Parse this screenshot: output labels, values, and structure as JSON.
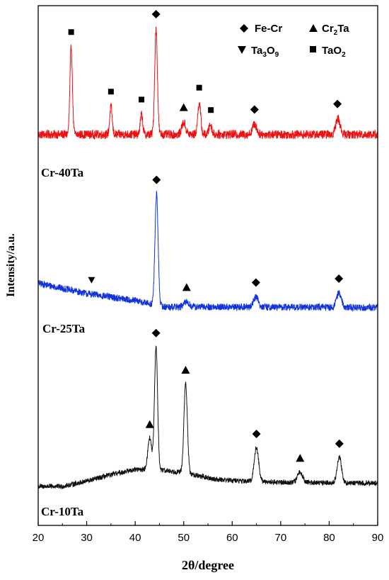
{
  "chart_data": {
    "type": "line",
    "xlabel": "2θ/degree",
    "ylabel": "Intensity/a.u.",
    "xlim": [
      20,
      90
    ],
    "xticks": [
      "20",
      "30",
      "40",
      "50",
      "60",
      "70",
      "80",
      "90"
    ],
    "legend": {
      "placement": "top-right",
      "entries": [
        {
          "symbol": "diamond",
          "text": "Fe-Cr",
          "label_main": "Fe-Cr",
          "label_sub": "",
          "label_tail": ""
        },
        {
          "symbol": "triangle-up",
          "text": "Cr2Ta",
          "label_main": "Cr",
          "label_sub": "2",
          "label_tail": "Ta"
        },
        {
          "symbol": "triangle-down",
          "text": "Ta3O9",
          "label_main": "Ta",
          "label_sub": "3",
          "label_tail": "O",
          "label_sub2": "9"
        },
        {
          "symbol": "square",
          "text": "TaO2",
          "label_main": "TaO",
          "label_sub": "2",
          "label_tail": ""
        }
      ]
    },
    "series": [
      {
        "name": "Cr-40Ta",
        "color": "#ee1111",
        "baseline": 0.3,
        "noise": 0.22,
        "background": [
          [
            20,
            0.3
          ],
          [
            90,
            0.3
          ]
        ],
        "peaks": [
          {
            "x": 26.8,
            "height": 4.4,
            "width": 0.25
          },
          {
            "x": 35.0,
            "height": 1.4,
            "width": 0.25
          },
          {
            "x": 41.3,
            "height": 1.0,
            "width": 0.25
          },
          {
            "x": 44.3,
            "height": 5.3,
            "width": 0.28
          },
          {
            "x": 50.0,
            "height": 0.6,
            "width": 0.4
          },
          {
            "x": 53.2,
            "height": 1.6,
            "width": 0.3
          },
          {
            "x": 55.5,
            "height": 0.5,
            "width": 0.3
          },
          {
            "x": 64.6,
            "height": 0.5,
            "width": 0.45
          },
          {
            "x": 81.8,
            "height": 0.8,
            "width": 0.45
          }
        ],
        "markers": [
          {
            "x": 26.8,
            "symbol": "square"
          },
          {
            "x": 35.0,
            "symbol": "square"
          },
          {
            "x": 41.3,
            "symbol": "square"
          },
          {
            "x": 44.3,
            "symbol": "diamond"
          },
          {
            "x": 50.0,
            "symbol": "triangle-up"
          },
          {
            "x": 53.2,
            "symbol": "square"
          },
          {
            "x": 55.6,
            "symbol": "square"
          },
          {
            "x": 64.6,
            "symbol": "diamond"
          },
          {
            "x": 81.7,
            "symbol": "diamond"
          }
        ]
      },
      {
        "name": "Cr-25Ta",
        "color": "#1133dd",
        "baseline": 0.25,
        "noise": 0.17,
        "background": [
          [
            20,
            1.4
          ],
          [
            30,
            0.9
          ],
          [
            40,
            0.55
          ],
          [
            46,
            0.25
          ],
          [
            90,
            0.22
          ]
        ],
        "peaks": [
          {
            "x": 44.4,
            "height": 5.4,
            "width": 0.32
          },
          {
            "x": 50.6,
            "height": 0.25,
            "width": 0.5
          },
          {
            "x": 64.9,
            "height": 0.5,
            "width": 0.5
          },
          {
            "x": 82.0,
            "height": 0.7,
            "width": 0.5
          }
        ],
        "markers": [
          {
            "x": 31.0,
            "symbol": "triangle-down"
          },
          {
            "x": 44.4,
            "symbol": "diamond"
          },
          {
            "x": 50.6,
            "symbol": "triangle-up"
          },
          {
            "x": 64.9,
            "symbol": "diamond"
          },
          {
            "x": 82.0,
            "symbol": "diamond"
          }
        ]
      },
      {
        "name": "Cr-10Ta",
        "color": "#111111",
        "baseline": 0.2,
        "noise": 0.12,
        "background": [
          [
            20,
            0.2
          ],
          [
            25,
            0.2
          ],
          [
            30,
            0.45
          ],
          [
            36,
            0.8
          ],
          [
            40,
            1.0
          ],
          [
            46,
            0.95
          ],
          [
            50,
            0.85
          ],
          [
            56,
            0.55
          ],
          [
            62,
            0.45
          ],
          [
            70,
            0.4
          ],
          [
            90,
            0.35
          ]
        ],
        "peaks": [
          {
            "x": 43.0,
            "height": 1.5,
            "width": 0.4
          },
          {
            "x": 44.3,
            "height": 5.8,
            "width": 0.32
          },
          {
            "x": 50.4,
            "height": 4.2,
            "width": 0.35
          },
          {
            "x": 65.0,
            "height": 1.6,
            "width": 0.45
          },
          {
            "x": 74.0,
            "height": 0.5,
            "width": 0.5
          },
          {
            "x": 82.1,
            "height": 1.2,
            "width": 0.45
          }
        ],
        "markers": [
          {
            "x": 43.0,
            "symbol": "triangle-up"
          },
          {
            "x": 44.3,
            "symbol": "diamond"
          },
          {
            "x": 50.4,
            "symbol": "triangle-up"
          },
          {
            "x": 65.0,
            "symbol": "diamond"
          },
          {
            "x": 74.0,
            "symbol": "triangle-up"
          },
          {
            "x": 82.1,
            "symbol": "diamond"
          }
        ]
      }
    ]
  }
}
